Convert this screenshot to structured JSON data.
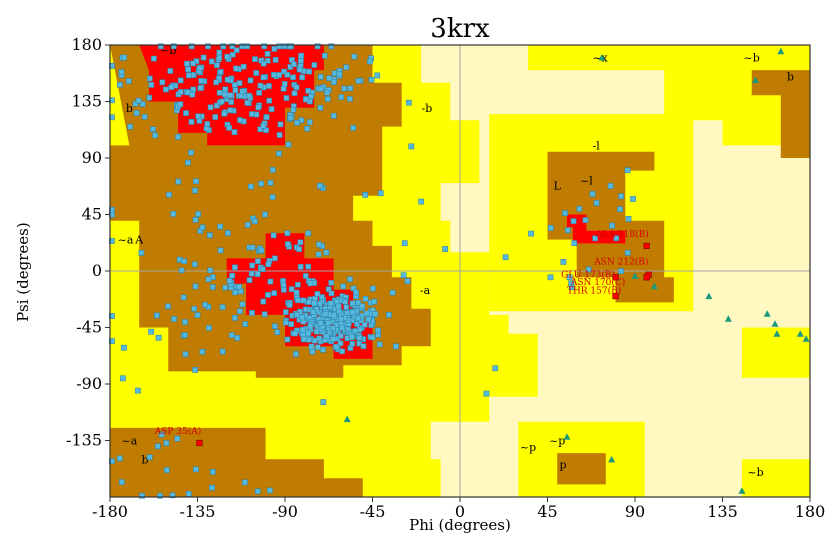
{
  "chart_data": {
    "type": "scatter",
    "title": "3krx",
    "xlabel": "Phi (degrees)",
    "ylabel": "Psi (degrees)",
    "xlim": [
      -180,
      180
    ],
    "ylim": [
      -180,
      180
    ],
    "xticks": [
      -180,
      -135,
      -90,
      -45,
      0,
      45,
      90,
      135,
      180
    ],
    "yticks": [
      180,
      135,
      90,
      45,
      0,
      -45,
      -90,
      -135
    ],
    "colors": {
      "generous": "#fff8c0",
      "allowed": "#ffff00",
      "additional": "#c07c00",
      "core": "#ff0000",
      "residue": "#55b8dc",
      "glycine": "#1a9a7a",
      "outlier": "#ff0000",
      "annotation": "#d40000",
      "guide": "#a6a6a6"
    },
    "region_labels": [
      {
        "text": "b",
        "phi": -170,
        "psi": 130
      },
      {
        "text": "-b",
        "phi": -17,
        "psi": 130
      },
      {
        "text": "~b",
        "phi": -150,
        "psi": 176
      },
      {
        "text": "A",
        "phi": -165,
        "psi": 25
      },
      {
        "text": "~a",
        "phi": -172,
        "psi": 25
      },
      {
        "text": "-a",
        "phi": -18,
        "psi": -15
      },
      {
        "text": "L",
        "phi": 50,
        "psi": 68
      },
      {
        "text": "-l",
        "phi": 70,
        "psi": 100
      },
      {
        "text": "~l",
        "phi": 65,
        "psi": 72
      },
      {
        "text": "~p",
        "phi": 50,
        "psi": -135
      },
      {
        "text": "p",
        "phi": 53,
        "psi": -154
      },
      {
        "text": "~p",
        "phi": 35,
        "psi": -140
      },
      {
        "text": "~b",
        "phi": 150,
        "psi": 170
      },
      {
        "text": "b",
        "phi": 170,
        "psi": 155
      },
      {
        "text": "~b",
        "phi": 152,
        "psi": -160
      },
      {
        "text": "~a",
        "phi": -170,
        "psi": -135
      },
      {
        "text": "b",
        "phi": -162,
        "psi": -150
      },
      {
        "text": "~x",
        "phi": 72,
        "psi": 170
      }
    ],
    "clusters": [
      {
        "region": "beta",
        "count": 230,
        "phi_center": -112,
        "psi_center": 148,
        "phi_spread": 30,
        "psi_spread": 20
      },
      {
        "region": "alpha",
        "count": 280,
        "phi_center": -66,
        "psi_center": -40,
        "phi_spread": 12,
        "psi_spread": 10
      },
      {
        "region": "alpha-edge",
        "count": 90,
        "phi_center": -92,
        "psi_center": -8,
        "phi_spread": 26,
        "psi_spread": 22
      },
      {
        "region": "bridge",
        "count": 30,
        "phi_center": -120,
        "psi_center": 50,
        "phi_spread": 40,
        "psi_spread": 40
      },
      {
        "region": "left-alpha",
        "count": 25,
        "phi_center": -150,
        "psi_center": -40,
        "phi_spread": 20,
        "psi_spread": 30
      },
      {
        "region": "left-bottom",
        "count": 18,
        "phi_center": -155,
        "psi_center": -160,
        "phi_spread": 20,
        "psi_spread": 15
      },
      {
        "region": "lefthanded",
        "count": 26,
        "phi_center": 68,
        "psi_center": 28,
        "phi_spread": 14,
        "psi_spread": 22
      },
      {
        "region": "scattered",
        "count": 20,
        "phi_center": -65,
        "psi_center": 80,
        "phi_spread": 60,
        "psi_spread": 70
      }
    ],
    "glycines": [
      [
        73,
        170
      ],
      [
        -58,
        -118
      ],
      [
        165,
        175
      ],
      [
        152,
        152
      ],
      [
        128,
        -20
      ],
      [
        138,
        -38
      ],
      [
        158,
        -34
      ],
      [
        162,
        -42
      ],
      [
        163,
        -50
      ],
      [
        175,
        -50
      ],
      [
        178,
        -54
      ],
      [
        90,
        -4
      ],
      [
        100,
        -12
      ],
      [
        145,
        -175
      ],
      [
        55,
        -132
      ],
      [
        78,
        -150
      ]
    ],
    "outliers": [
      [
        -134,
        -137
      ],
      [
        96,
        20
      ],
      [
        80,
        -5
      ],
      [
        97,
        -3
      ],
      [
        80,
        -20
      ],
      [
        96,
        -5
      ]
    ],
    "annotations": [
      {
        "text": "ASP 35(A)",
        "phi": -157,
        "psi": -130
      },
      {
        "text": "ALA 218(B)",
        "phi": 70,
        "psi": 27
      },
      {
        "text": "ASN 212(B)",
        "phi": 69,
        "psi": 5
      },
      {
        "text": "GLU 173(B)",
        "phi": 52,
        "psi": -5
      },
      {
        "text": "ASN 170(C)",
        "phi": 57,
        "psi": -11
      },
      {
        "text": "THR 157(B)",
        "phi": 55,
        "psi": -18
      }
    ]
  }
}
